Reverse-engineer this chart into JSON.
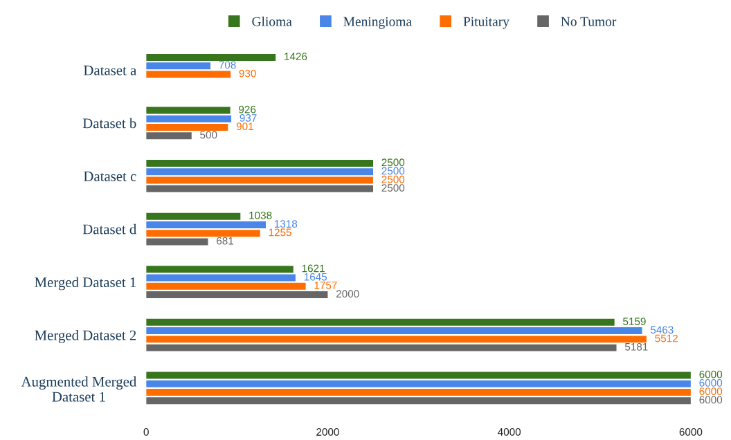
{
  "chart_data": {
    "type": "bar",
    "orientation": "horizontal",
    "categories": [
      "Dataset a",
      "Dataset b",
      "Dataset c",
      "Dataset d",
      "Merged Dataset 1",
      "Merged Dataset 2",
      "Augmented Merged Dataset 1"
    ],
    "series": [
      {
        "name": "Glioma",
        "color": "#38761d",
        "values": [
          1426,
          926,
          2500,
          1038,
          1621,
          5159,
          6000
        ]
      },
      {
        "name": "Meningioma",
        "color": "#4a86e8",
        "values": [
          708,
          937,
          2500,
          1318,
          1645,
          5463,
          6000
        ]
      },
      {
        "name": "Pituitary",
        "color": "#ff6d01",
        "values": [
          930,
          901,
          2500,
          1255,
          1757,
          5512,
          6000
        ]
      },
      {
        "name": "No Tumor",
        "color": "#666666",
        "values": [
          null,
          500,
          2500,
          681,
          2000,
          5181,
          6000
        ]
      }
    ],
    "xlim": [
      0,
      6000
    ],
    "xticks": [
      0,
      2000,
      4000,
      6000
    ],
    "data_labels": true,
    "grid": false,
    "legend": "top",
    "marker": "square"
  }
}
